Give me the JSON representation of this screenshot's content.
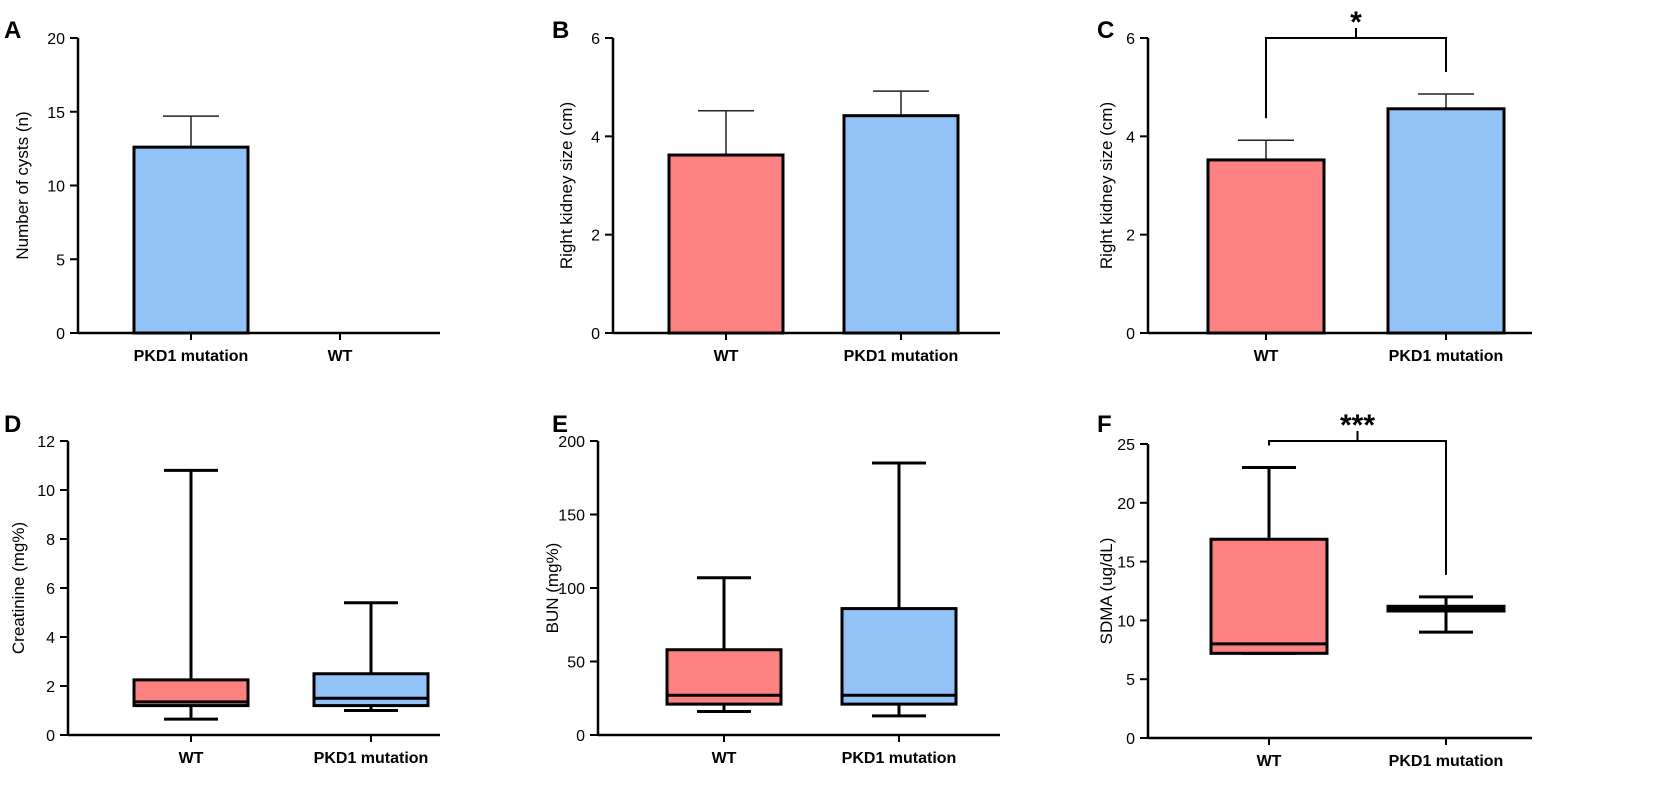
{
  "colors": {
    "wt": "#fc8181",
    "pkd1": "#93c2f7",
    "axis": "#000000"
  },
  "chart_data": [
    {
      "panel": "A",
      "type": "bar",
      "ylabel": "Number of cysts (n)",
      "xlabel": "",
      "ylim": [
        0,
        20
      ],
      "yticks": [
        0,
        5,
        10,
        15,
        20
      ],
      "categories": [
        "PKD1 mutation",
        "WT"
      ],
      "values": [
        12.6,
        0
      ],
      "errors": [
        2.1,
        0
      ],
      "colors": [
        "pkd1",
        "wt"
      ],
      "significance": ""
    },
    {
      "panel": "B",
      "type": "bar",
      "ylabel": "Right kidney size (cm)",
      "xlabel": "",
      "ylim": [
        0,
        6
      ],
      "yticks": [
        0,
        2,
        4,
        6
      ],
      "categories": [
        "WT",
        "PKD1 mutation"
      ],
      "values": [
        3.62,
        4.42
      ],
      "errors": [
        0.9,
        0.5
      ],
      "colors": [
        "wt",
        "pkd1"
      ],
      "significance": ""
    },
    {
      "panel": "C",
      "type": "bar",
      "ylabel": "Right kidney size (cm)",
      "xlabel": "",
      "ylim": [
        0,
        6
      ],
      "yticks": [
        0,
        2,
        4,
        6
      ],
      "categories": [
        "WT",
        "PKD1 mutation"
      ],
      "values": [
        3.52,
        4.56
      ],
      "errors": [
        0.4,
        0.3
      ],
      "colors": [
        "wt",
        "pkd1"
      ],
      "significance": "*"
    },
    {
      "panel": "D",
      "type": "box",
      "ylabel": "Creatinine (mg%)",
      "xlabel": "",
      "ylim": [
        0,
        12
      ],
      "yticks": [
        0,
        2,
        4,
        6,
        8,
        10,
        12
      ],
      "categories": [
        "WT",
        "PKD1 mutation"
      ],
      "boxes": [
        {
          "min": 0.65,
          "q1": 1.2,
          "median": 1.35,
          "q3": 2.25,
          "max": 10.8
        },
        {
          "min": 1.0,
          "q1": 1.2,
          "median": 1.5,
          "q3": 2.5,
          "max": 5.4
        }
      ],
      "colors": [
        "wt",
        "pkd1"
      ],
      "significance": ""
    },
    {
      "panel": "E",
      "type": "box",
      "ylabel": "BUN (mg%)",
      "xlabel": "",
      "ylim": [
        0,
        200
      ],
      "yticks": [
        0,
        50,
        100,
        150,
        200
      ],
      "categories": [
        "WT",
        "PKD1 mutation"
      ],
      "boxes": [
        {
          "min": 16,
          "q1": 21,
          "median": 27,
          "q3": 58,
          "max": 107
        },
        {
          "min": 13,
          "q1": 21,
          "median": 27,
          "q3": 86,
          "max": 185
        }
      ],
      "colors": [
        "wt",
        "pkd1"
      ],
      "significance": ""
    },
    {
      "panel": "F",
      "type": "box",
      "ylabel": "SDMA (ug/dL)",
      "xlabel": "",
      "ylim": [
        0,
        25
      ],
      "yticks": [
        0,
        5,
        10,
        15,
        20,
        25
      ],
      "categories": [
        "WT",
        "PKD1 mutation"
      ],
      "boxes": [
        {
          "min": 7.2,
          "q1": 7.2,
          "median": 8.0,
          "q3": 16.9,
          "max": 23.0
        },
        {
          "min": 9.0,
          "q1": 10.8,
          "median": 11.0,
          "q3": 11.2,
          "max": 12.0
        }
      ],
      "colors": [
        "wt",
        "pkd1"
      ],
      "significance": "***"
    }
  ]
}
